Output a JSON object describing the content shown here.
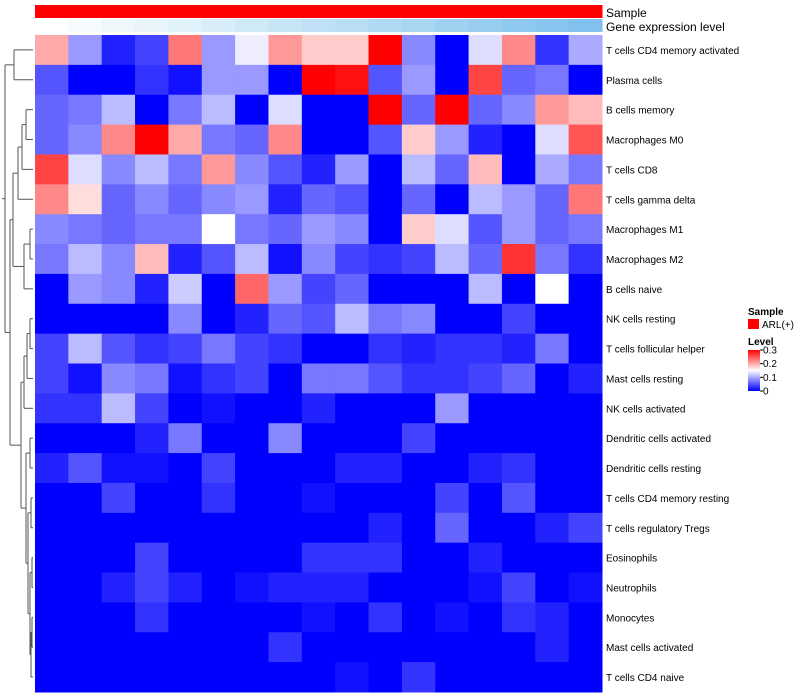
{
  "chart_data": {
    "type": "heatmap",
    "annotation_tracks": [
      {
        "name": "Sample"
      },
      {
        "name": "Gene expression level"
      }
    ],
    "legend": {
      "sample_title": "Sample",
      "sample_entries": [
        {
          "label": "ARL(+)",
          "color": "#ff0000"
        }
      ],
      "level_title": "Level",
      "level_ticks": [
        "0.3",
        "0.2",
        "0.1",
        "0"
      ],
      "level_tick_values": [
        0.3,
        0.2,
        0.1,
        0
      ]
    },
    "color_scale": {
      "min": 0,
      "mid": 0.15,
      "max": 0.3,
      "low_color": "#0000ff",
      "mid_color": "#ffffff",
      "high_color": "#ff0000"
    },
    "sample_color": "#ff0000",
    "expression_colors": [
      "#ffffff",
      "#f7fbfd",
      "#eff7fb",
      "#e8f4fa",
      "#e0f1f9",
      "#d8edf8",
      "#d0e9f7",
      "#c8e5f6",
      "#c0e1f5",
      "#b8ddf4",
      "#b0d9f3",
      "#a8d5f2",
      "#a0d1f1",
      "#98cdf0",
      "#90c9ef",
      "#88c5ee",
      "#80c1ed",
      "#78bdec"
    ],
    "rows": [
      "T cells CD4 memory activated",
      "Plasma cells",
      "B cells memory",
      "Macrophages M0",
      "T cells CD8",
      "T cells gamma delta",
      "Macrophages M1",
      "Macrophages M2",
      "B cells naive",
      "NK cells resting",
      "T cells follicular helper",
      "Mast cells resting",
      "NK cells activated",
      "Dendritic cells activated",
      "Dendritic cells resting",
      "T cells CD4 memory resting",
      "T cells regulatory  Tregs",
      "Eosinophils",
      "Neutrophils",
      "Monocytes",
      "Mast cells activated",
      "T cells CD4 naive"
    ],
    "values": [
      [
        0.2,
        0.09,
        0.02,
        0.04,
        0.23,
        0.09,
        0.14,
        0.21,
        0.18,
        0.18,
        0.3,
        0.08,
        0.0,
        0.13,
        0.22,
        0.03,
        0.1
      ],
      [
        0.05,
        0.0,
        0.0,
        0.03,
        0.01,
        0.09,
        0.09,
        0.0,
        0.3,
        0.29,
        0.05,
        0.09,
        0.0,
        0.26,
        0.06,
        0.07,
        0.0
      ],
      [
        0.06,
        0.07,
        0.11,
        0.0,
        0.07,
        0.11,
        0.0,
        0.13,
        0.0,
        0.0,
        0.3,
        0.06,
        0.3,
        0.06,
        0.08,
        0.21,
        0.19
      ],
      [
        0.06,
        0.08,
        0.22,
        0.3,
        0.2,
        0.07,
        0.06,
        0.22,
        0.0,
        0.0,
        0.05,
        0.18,
        0.09,
        0.02,
        0.0,
        0.13,
        0.25
      ],
      [
        0.26,
        0.13,
        0.08,
        0.11,
        0.07,
        0.21,
        0.08,
        0.05,
        0.02,
        0.09,
        0.0,
        0.11,
        0.06,
        0.19,
        0.0,
        0.1,
        0.07
      ],
      [
        0.22,
        0.17,
        0.06,
        0.08,
        0.06,
        0.08,
        0.09,
        0.02,
        0.06,
        0.05,
        0.0,
        0.06,
        0.0,
        0.11,
        0.09,
        0.06,
        0.23
      ],
      [
        0.08,
        0.07,
        0.06,
        0.07,
        0.07,
        0.15,
        0.07,
        0.06,
        0.09,
        0.08,
        0.0,
        0.18,
        0.13,
        0.05,
        0.09,
        0.06,
        0.07
      ],
      [
        0.07,
        0.11,
        0.08,
        0.19,
        0.02,
        0.05,
        0.11,
        0.01,
        0.08,
        0.04,
        0.03,
        0.04,
        0.11,
        0.06,
        0.27,
        0.07,
        0.03
      ],
      [
        0.0,
        0.09,
        0.08,
        0.02,
        0.12,
        0.0,
        0.24,
        0.09,
        0.04,
        0.06,
        0.0,
        0.0,
        0.0,
        0.11,
        0.0,
        0.15,
        0.0
      ],
      [
        0.0,
        0.0,
        0.0,
        0.0,
        0.08,
        0.0,
        0.02,
        0.06,
        0.05,
        0.11,
        0.07,
        0.08,
        0.0,
        0.0,
        0.04,
        0.0,
        0.0
      ],
      [
        0.04,
        0.11,
        0.05,
        0.03,
        0.04,
        0.07,
        0.04,
        0.03,
        0.0,
        0.0,
        0.03,
        0.02,
        0.03,
        0.03,
        0.02,
        0.07,
        0.0
      ],
      [
        0.04,
        0.01,
        0.08,
        0.07,
        0.01,
        0.03,
        0.04,
        0.0,
        0.07,
        0.07,
        0.05,
        0.03,
        0.03,
        0.04,
        0.06,
        0.0,
        0.02
      ],
      [
        0.03,
        0.03,
        0.11,
        0.04,
        0.0,
        0.01,
        0.0,
        0.0,
        0.02,
        0.0,
        0.0,
        0.0,
        0.09,
        0.0,
        0.0,
        0.0,
        0.0
      ],
      [
        0.0,
        0.0,
        0.0,
        0.02,
        0.07,
        0.0,
        0.0,
        0.08,
        0.0,
        0.0,
        0.0,
        0.04,
        0.0,
        0.0,
        0.0,
        0.0,
        0.0
      ],
      [
        0.02,
        0.05,
        0.01,
        0.01,
        0.0,
        0.04,
        0.0,
        0.0,
        0.0,
        0.02,
        0.02,
        0.0,
        0.0,
        0.02,
        0.03,
        0.0,
        0.0
      ],
      [
        0.0,
        0.0,
        0.04,
        0.0,
        0.0,
        0.03,
        0.0,
        0.0,
        0.01,
        0.0,
        0.0,
        0.0,
        0.04,
        0.0,
        0.05,
        0.0,
        0.0
      ],
      [
        0.0,
        0.0,
        0.0,
        0.0,
        0.0,
        0.0,
        0.0,
        0.0,
        0.0,
        0.0,
        0.02,
        0.0,
        0.06,
        0.0,
        0.0,
        0.02,
        0.04
      ],
      [
        0.0,
        0.0,
        0.0,
        0.04,
        0.0,
        0.0,
        0.0,
        0.0,
        0.03,
        0.03,
        0.03,
        0.0,
        0.0,
        0.02,
        0.0,
        0.0,
        0.0
      ],
      [
        0.0,
        0.0,
        0.02,
        0.04,
        0.02,
        0.0,
        0.01,
        0.02,
        0.02,
        0.02,
        0.0,
        0.0,
        0.0,
        0.01,
        0.04,
        0.0,
        0.01
      ],
      [
        0.0,
        0.0,
        0.0,
        0.03,
        0.0,
        0.0,
        0.0,
        0.0,
        0.01,
        0.0,
        0.03,
        0.0,
        0.01,
        0.0,
        0.03,
        0.02,
        0.0
      ],
      [
        0.0,
        0.0,
        0.0,
        0.0,
        0.0,
        0.0,
        0.0,
        0.03,
        0.0,
        0.0,
        0.0,
        0.0,
        0.0,
        0.0,
        0.0,
        0.02,
        0.0
      ],
      [
        0.0,
        0.0,
        0.0,
        0.0,
        0.0,
        0.0,
        0.0,
        0.0,
        0.0,
        0.01,
        0.0,
        0.03,
        0.0,
        0.0,
        0.0,
        0.0,
        0.0
      ]
    ]
  }
}
